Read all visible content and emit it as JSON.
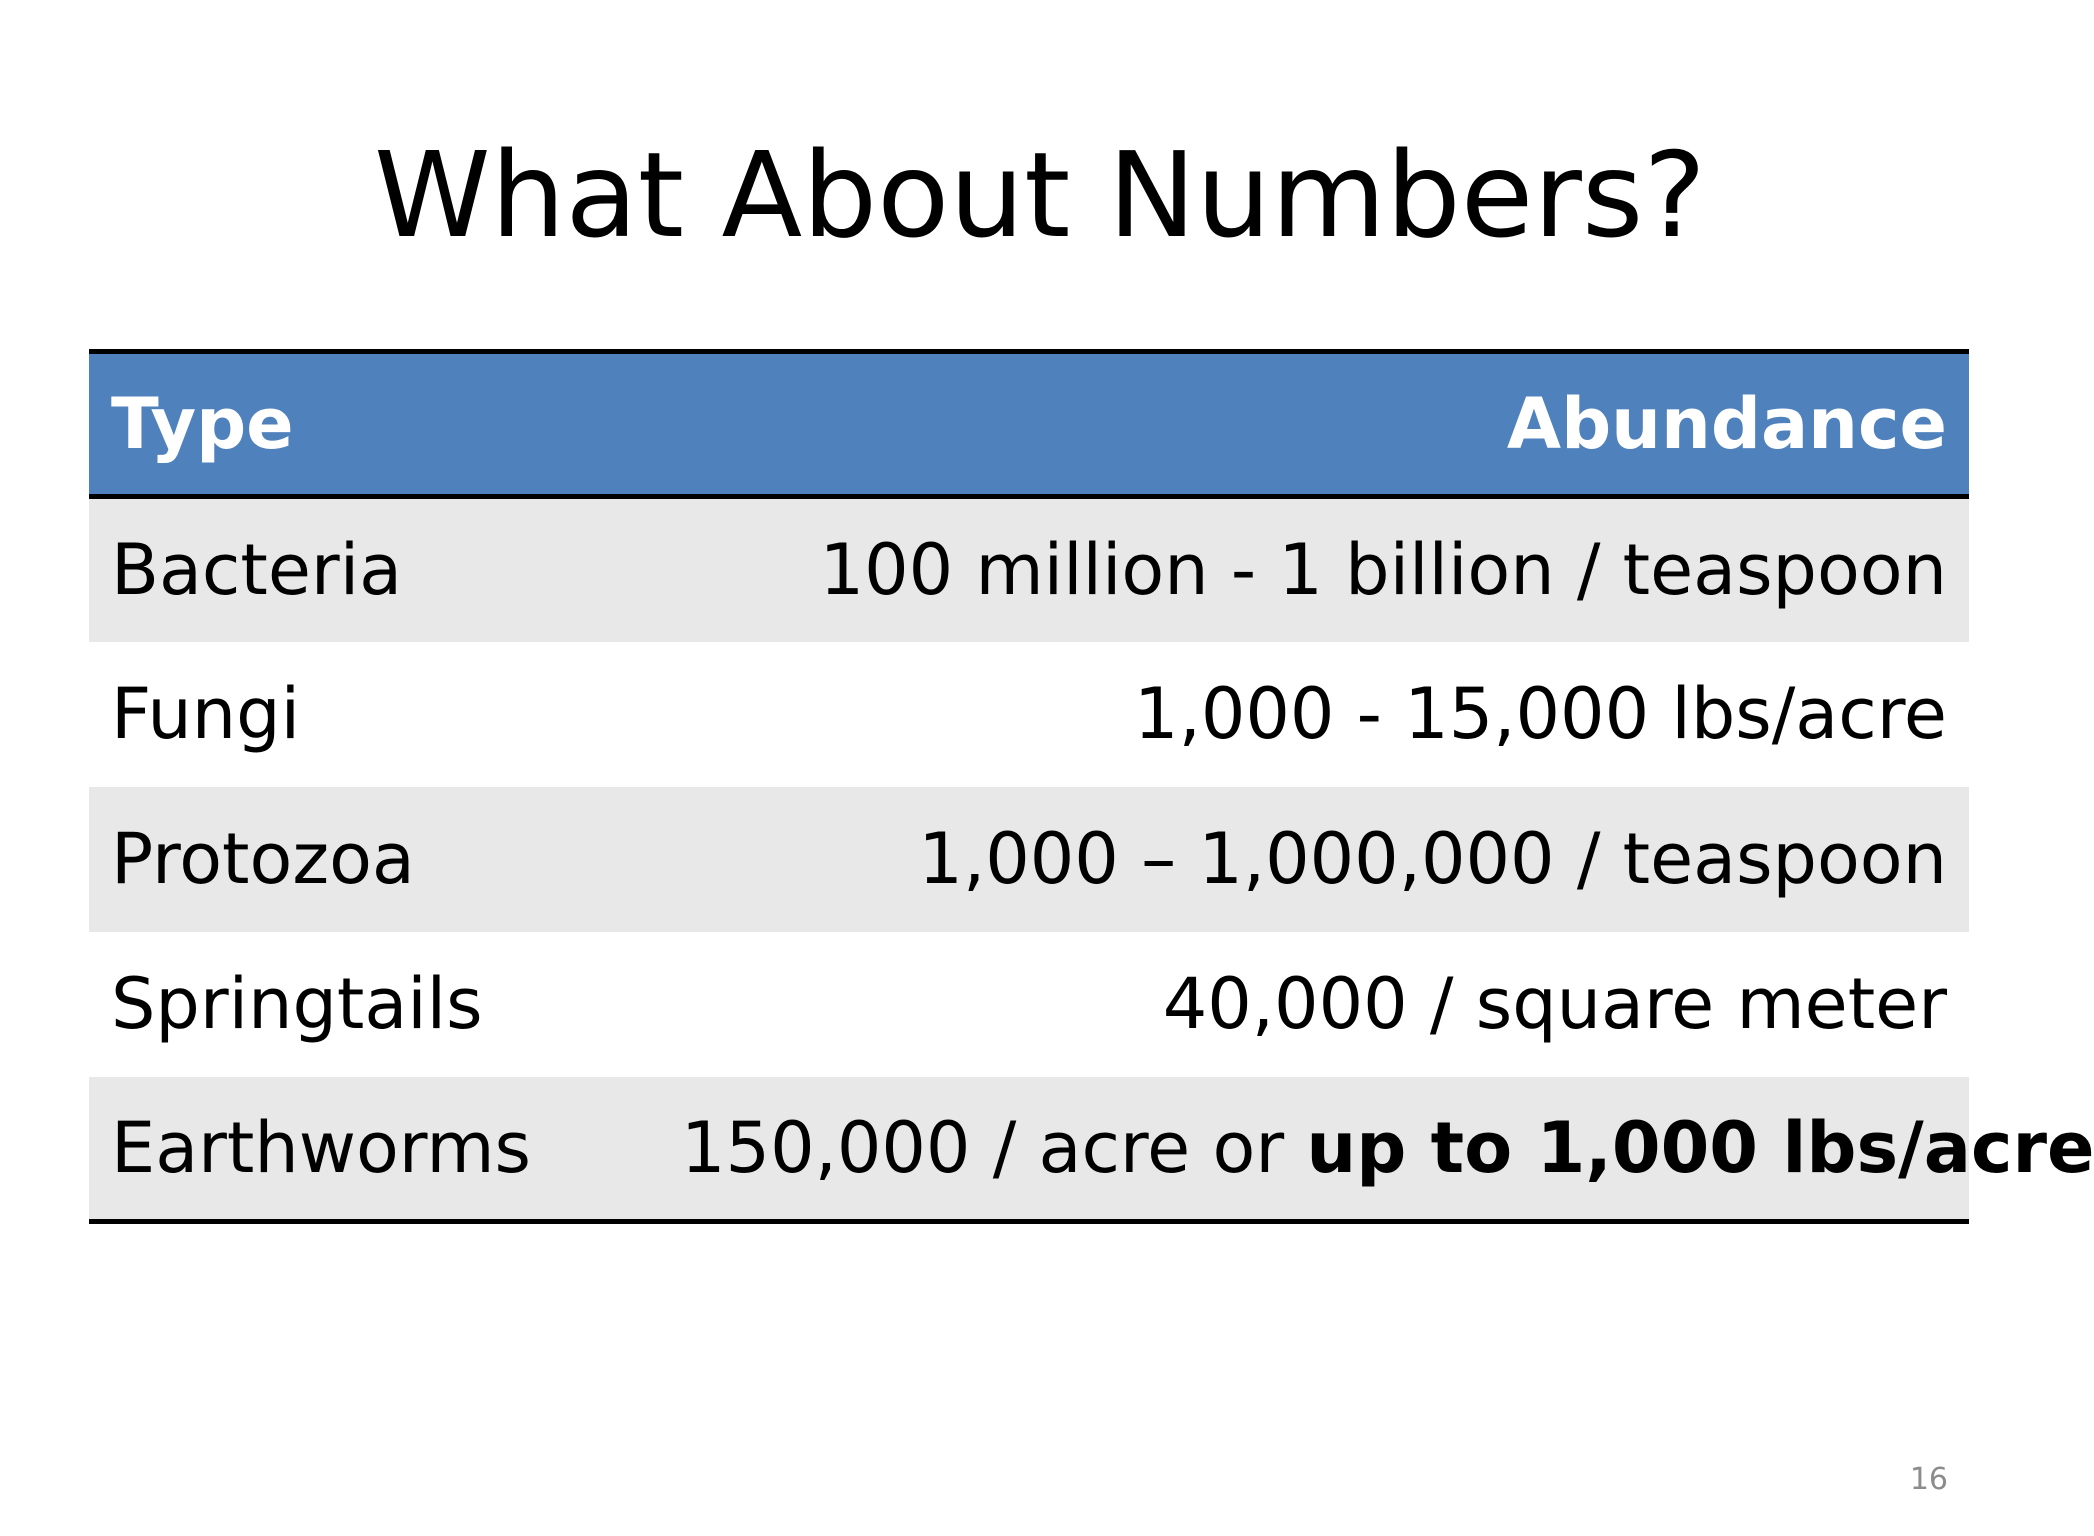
{
  "slide": {
    "title": "What About Numbers?",
    "page_number": "16"
  },
  "table": {
    "header": {
      "type": "Type",
      "abundance": "Abundance"
    },
    "header_color": "#4f81bd",
    "rows": [
      {
        "type": "Bacteria",
        "abundance": "100 million - 1 billion / teaspoon"
      },
      {
        "type": "Fungi",
        "abundance": "1,000 - 15,000 lbs/acre"
      },
      {
        "type": "Protozoa",
        "abundance": "1,000 – 1,000,000 / teaspoon"
      },
      {
        "type": "Springtails",
        "abundance": "40,000 / square meter"
      },
      {
        "type": "Earthworms",
        "abundance": "150,000 / acre or ",
        "abundance_bold": "up to 1,000 lbs/acre"
      }
    ]
  }
}
